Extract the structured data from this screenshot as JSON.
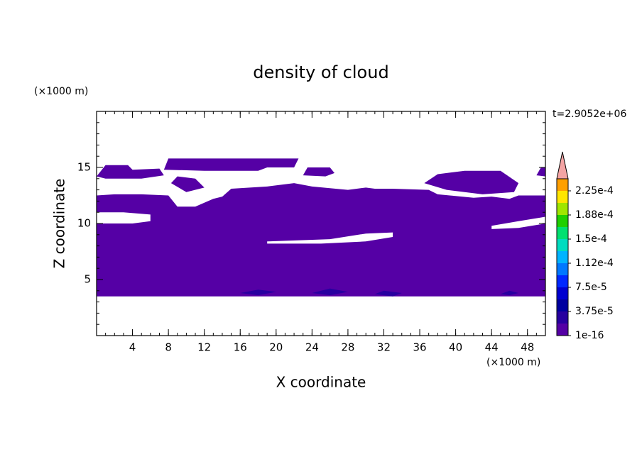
{
  "chart_data": {
    "type": "contour",
    "title": "density of cloud",
    "xlabel": "X coordinate",
    "ylabel": "Z coordinate",
    "x_unit": "(×1000 m)",
    "y_unit": "(×1000 m)",
    "time_label": "t=2.9052e+06",
    "xlim": [
      0,
      50
    ],
    "ylim": [
      0,
      20
    ],
    "xticks": [
      4,
      8,
      12,
      16,
      20,
      24,
      28,
      32,
      36,
      40,
      44,
      48
    ],
    "yticks": [
      5,
      10,
      15
    ],
    "minor_step": 1,
    "clim": [
      1e-16,
      0.00024375
    ],
    "colors": [
      "#5500a5",
      "#2800a0",
      "#0000a0",
      "#0000d0",
      "#0028ff",
      "#0078ff",
      "#00b4ff",
      "#00dcc0",
      "#00e070",
      "#20d000",
      "#a0e600",
      "#ffe600",
      "#ffa000"
    ],
    "extend_color": "#f4a4a4",
    "colorbar_ticks": [
      {
        "value": 1e-16,
        "label": "1e-16"
      },
      {
        "value": 3.75e-05,
        "label": "3.75e-5"
      },
      {
        "value": 7.5e-05,
        "label": "7.5e-5"
      },
      {
        "value": 0.0001125,
        "label": "1.12e-4"
      },
      {
        "value": 0.00015,
        "label": "1.5e-4"
      },
      {
        "value": 0.0001875,
        "label": "1.88e-4"
      },
      {
        "value": 0.000225,
        "label": "2.25e-4"
      }
    ],
    "regions": [
      {
        "level": 0,
        "rings": [
          [
            [
              0,
              3.5
            ],
            [
              50,
              3.5
            ],
            [
              50,
              12.5
            ],
            [
              47,
              12.5
            ],
            [
              46,
              12.2
            ],
            [
              44,
              12.4
            ],
            [
              42,
              12.3
            ],
            [
              38,
              12.6
            ],
            [
              37,
              13
            ],
            [
              33,
              13.1
            ],
            [
              31,
              13.1
            ],
            [
              30,
              13.2
            ],
            [
              28,
              13
            ],
            [
              24,
              13.3
            ],
            [
              22,
              13.6
            ],
            [
              19,
              13.3
            ],
            [
              15,
              13.1
            ],
            [
              14,
              12.4
            ],
            [
              13,
              12.2
            ],
            [
              11,
              11.5
            ],
            [
              9,
              11.5
            ],
            [
              8,
              12.5
            ],
            [
              5,
              12.6
            ],
            [
              2,
              12.6
            ],
            [
              0,
              12.5
            ]
          ],
          [
            [
              0,
              10
            ],
            [
              4,
              10
            ],
            [
              6,
              10.2
            ],
            [
              6,
              10.8
            ],
            [
              3,
              11
            ],
            [
              0,
              11
            ]
          ],
          [
            [
              19,
              8.4
            ],
            [
              26,
              8.6
            ],
            [
              30,
              9.1
            ],
            [
              33,
              9.2
            ],
            [
              33,
              8.8
            ],
            [
              30,
              8.4
            ],
            [
              25,
              8.2
            ],
            [
              19,
              8.2
            ]
          ],
          [
            [
              44,
              9.8
            ],
            [
              47,
              10.2
            ],
            [
              50,
              10.6
            ],
            [
              50,
              10
            ],
            [
              47,
              9.6
            ],
            [
              44,
              9.5
            ]
          ]
        ]
      },
      {
        "level": 0,
        "rings": [
          [
            [
              0,
              14.2
            ],
            [
              1,
              15.2
            ],
            [
              3.5,
              15.2
            ],
            [
              4,
              14.8
            ],
            [
              7,
              14.9
            ],
            [
              7.5,
              14.3
            ],
            [
              5,
              14
            ],
            [
              1,
              14
            ]
          ]
        ]
      },
      {
        "level": 0,
        "rings": [
          [
            [
              7.5,
              14.8
            ],
            [
              8,
              15.8
            ],
            [
              22.5,
              15.8
            ],
            [
              22,
              15
            ],
            [
              19,
              15
            ],
            [
              18,
              14.7
            ],
            [
              12,
              14.7
            ]
          ]
        ]
      },
      {
        "level": 0,
        "rings": [
          [
            [
              23,
              14.3
            ],
            [
              23.5,
              15
            ],
            [
              26,
              15
            ],
            [
              26.5,
              14.5
            ],
            [
              25.5,
              14.2
            ]
          ]
        ]
      },
      {
        "level": 0,
        "rings": [
          [
            [
              8.3,
              13.6
            ],
            [
              9,
              14.2
            ],
            [
              11,
              14
            ],
            [
              12,
              13.2
            ],
            [
              10,
              12.8
            ]
          ]
        ]
      },
      {
        "level": 0,
        "rings": [
          [
            [
              36.5,
              13.6
            ],
            [
              38,
              14.4
            ],
            [
              41,
              14.7
            ],
            [
              45,
              14.7
            ],
            [
              47,
              13.6
            ],
            [
              46.5,
              12.8
            ],
            [
              43,
              12.6
            ],
            [
              39,
              13
            ]
          ]
        ]
      },
      {
        "level": 0,
        "rings": [
          [
            [
              49,
              14.3
            ],
            [
              49.5,
              15
            ],
            [
              50,
              15
            ],
            [
              50,
              14.2
            ]
          ]
        ]
      },
      {
        "level": 1,
        "rings": [
          [
            [
              16,
              3.8
            ],
            [
              18,
              3.6
            ],
            [
              20,
              3.9
            ],
            [
              18,
              4.1
            ]
          ]
        ]
      },
      {
        "level": 1,
        "rings": [
          [
            [
              24,
              3.8
            ],
            [
              26,
              3.6
            ],
            [
              28,
              3.9
            ],
            [
              26,
              4.2
            ]
          ]
        ]
      },
      {
        "level": 1,
        "rings": [
          [
            [
              31,
              3.7
            ],
            [
              33,
              3.5
            ],
            [
              34,
              3.8
            ],
            [
              32,
              4
            ]
          ]
        ]
      },
      {
        "level": 1,
        "rings": [
          [
            [
              45,
              3.7
            ],
            [
              46,
              3.6
            ],
            [
              47,
              3.8
            ],
            [
              46,
              4
            ]
          ]
        ]
      }
    ]
  }
}
